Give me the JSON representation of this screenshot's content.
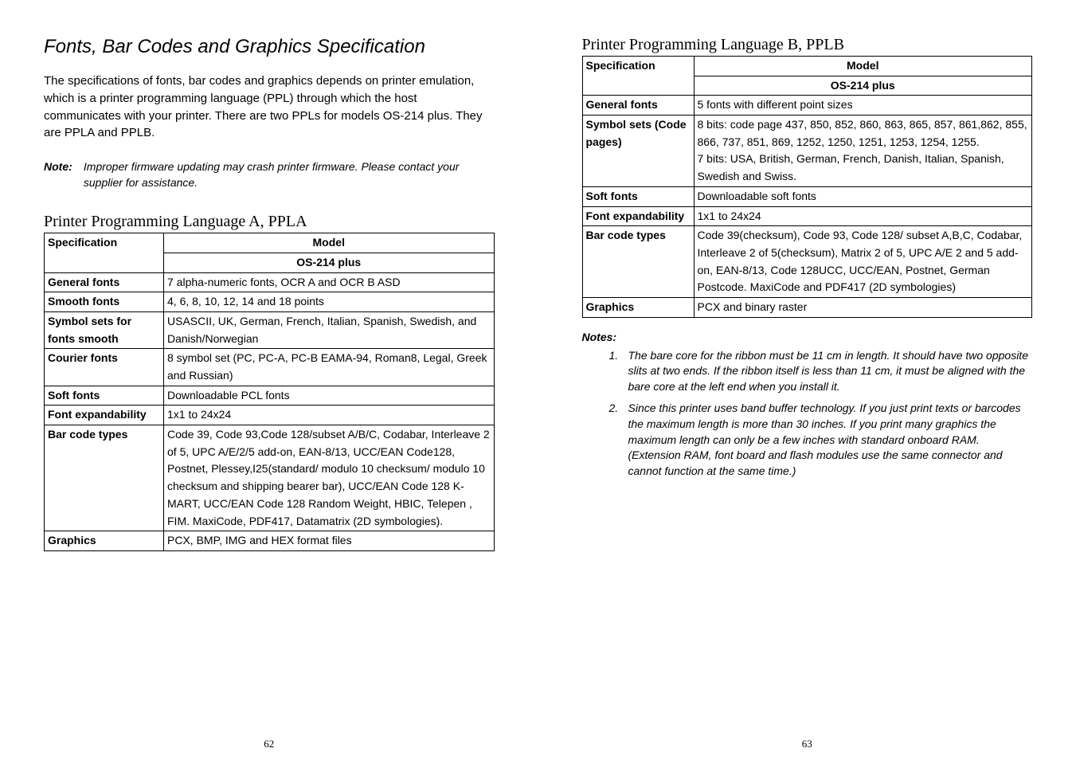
{
  "left": {
    "title": "Fonts, Bar Codes and Graphics Specification",
    "intro": "The specifications of fonts, bar codes and graphics depends on printer emulation, which is a printer programming language (PPL) through which the host communicates with your printer. There are two PPLs for models OS-214 plus. They are PPLA and PPLB.",
    "note_label": "Note:",
    "note_body": "Improper firmware updating may crash printer firmware. Please contact your supplier for assistance.",
    "subhead": "Printer Programming Language A, PPLA",
    "th_spec": "Specification",
    "th_model": "Model",
    "th_sub": "OS-214 plus",
    "rows": [
      {
        "label": "General fonts",
        "val": "7 alpha-numeric fonts, OCR A and OCR B ASD"
      },
      {
        "label": "Smooth fonts",
        "val": "4, 6, 8, 10, 12, 14 and 18 points"
      },
      {
        "label": "Symbol sets for fonts smooth",
        "val": "USASCII, UK, German, French, Italian, Spanish, Swedish, and Danish/Norwegian"
      },
      {
        "label": "Courier fonts",
        "val": "8 symbol set (PC, PC-A, PC-B EAMA-94, Roman8, Legal, Greek and Russian)"
      },
      {
        "label": "Soft fonts",
        "val": "Downloadable PCL fonts"
      },
      {
        "label": "Font expandability",
        "val": "1x1 to 24x24"
      },
      {
        "label": "Bar code types",
        "val": "Code 39, Code 93,Code 128/subset A/B/C, Codabar, Interleave 2 of 5, UPC A/E/2/5 add-on, EAN-8/13, UCC/EAN Code128, Postnet, Plessey,I25(standard/ modulo 10 checksum/ modulo 10 checksum and shipping bearer bar), UCC/EAN Code 128 K-MART, UCC/EAN Code 128 Random Weight, HBIC, Telepen , FIM. MaxiCode, PDF417, Datamatrix (2D symbologies)."
      },
      {
        "label": "Graphics",
        "val": "PCX, BMP, IMG and HEX format files"
      }
    ],
    "pagenum": "62"
  },
  "right": {
    "subhead": "Printer Programming Language B, PPLB",
    "th_spec": "Specification",
    "th_model": "Model",
    "th_sub": "OS-214 plus",
    "rows": [
      {
        "label": "General fonts",
        "val": "5 fonts with different point sizes"
      },
      {
        "label": "Symbol sets (Code pages)",
        "val": "8 bits: code page 437, 850, 852, 860, 863, 865, 857, 861,862, 855, 866, 737, 851, 869, 1252, 1250, 1251, 1253, 1254, 1255.\n7 bits: USA, British, German, French, Danish, Italian, Spanish, Swedish and Swiss."
      },
      {
        "label": "Soft fonts",
        "val": "Downloadable soft fonts"
      },
      {
        "label": "Font expandability",
        "val": "1x1 to 24x24"
      },
      {
        "label": "Bar code types",
        "val": "Code 39(checksum), Code 93, Code 128/ subset A,B,C, Codabar, Interleave 2 of 5(checksum), Matrix 2 of 5, UPC A/E 2 and 5 add-on, EAN-8/13, Code 128UCC, UCC/EAN, Postnet, German Postcode. MaxiCode and PDF417 (2D symbologies)"
      },
      {
        "label": "Graphics",
        "val": "PCX and binary raster"
      }
    ],
    "notes_head": "Notes:",
    "notes": [
      "The bare core for the ribbon must be 11 cm in length. It should have two opposite slits at two ends. If the ribbon itself is less than 11 cm, it must be aligned with the bare core at the left end when you install it.",
      "Since this printer uses band buffer technology. If you just print texts or barcodes the maximum length is more than 30 inches. If you print many graphics the maximum length can only be a few inches with standard onboard RAM. (Extension RAM, font board and flash modules use the same connector and cannot function at the same time.)"
    ],
    "pagenum": "63"
  }
}
